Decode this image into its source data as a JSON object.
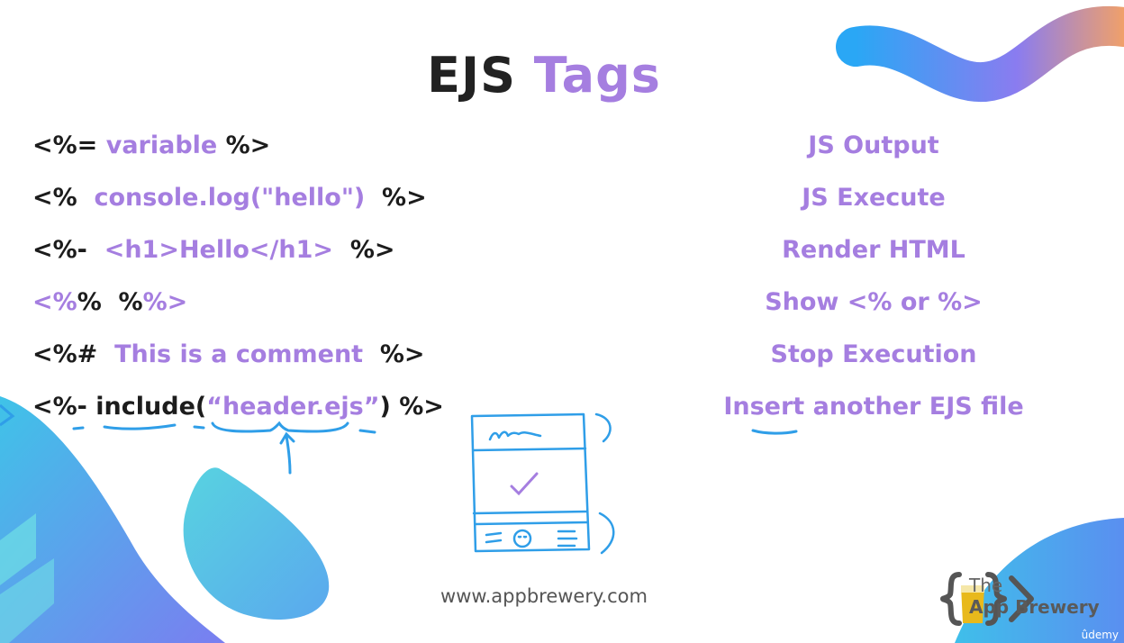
{
  "slide": {
    "title_main": "EJS",
    "title_accent": "Tags",
    "rows": [
      {
        "open": "<%=",
        "content": " variable ",
        "close": "%>",
        "description": "JS Output"
      },
      {
        "open": "<% ",
        "content": " console.log(\"hello\") ",
        "close": " %>",
        "description": "JS Execute"
      },
      {
        "open": "<%- ",
        "content": " <h1>Hello</h1> ",
        "close": " %>",
        "description": "Render HTML"
      },
      {
        "open": "<%",
        "content": "%  %",
        "close": "%>",
        "description": "Show <% or %>"
      },
      {
        "open": "<%# ",
        "content": " This is a comment ",
        "close": " %>",
        "description": "Stop Execution"
      },
      {
        "open": "<%- include(",
        "content": "“header.ejs”",
        "close": ") %>",
        "description": "Insert another EJS file"
      }
    ],
    "footer_url": "www.appbrewery.com",
    "logo_line1": "The",
    "logo_line2": "App Brewery",
    "watermark": "ûdemy",
    "colors": {
      "accent": "#a57ee0",
      "text": "#1c1c1c",
      "annotation": "#2f9ee8",
      "blob": "#4fc9e6"
    }
  }
}
